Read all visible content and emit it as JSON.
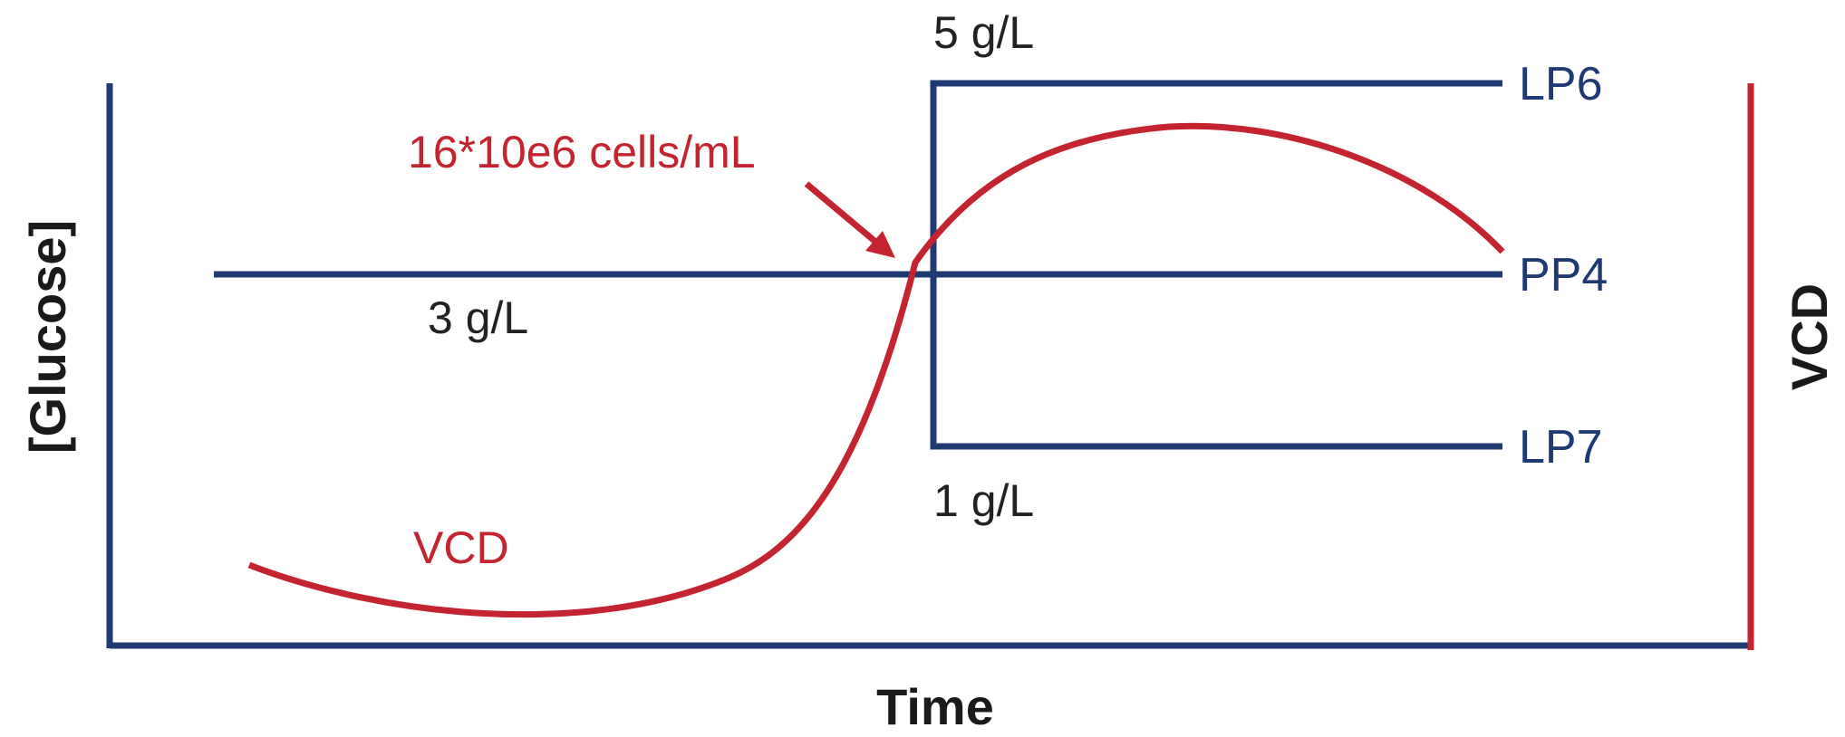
{
  "axes": {
    "x_label": "Time",
    "y_left_label": "[Glucose]",
    "y_right_label": "VCD"
  },
  "glucose_levels": {
    "high": "5 g/L",
    "mid": "3 g/L",
    "low": "1 g/L"
  },
  "conditions": {
    "high": "LP6",
    "mid": "PP4",
    "low": "LP7"
  },
  "vcd_curve": {
    "label": "VCD",
    "threshold_annotation": "16*10e6 cells/mL"
  },
  "colors": {
    "glucose_lines": "#1f3a72",
    "vcd": "#c42330",
    "text": "#222222"
  }
}
